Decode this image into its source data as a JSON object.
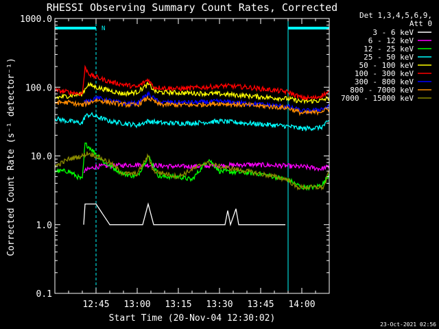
{
  "chart_data": {
    "type": "line",
    "title": "RHESSI Observing Summary Count Rates, Corrected",
    "xlabel": "Start Time (20-Nov-04 12:30:02)",
    "ylabel": "Corrected Count Rate (s⁻¹ detector⁻¹)",
    "yscale": "log",
    "ylim": [
      0.1,
      1000
    ],
    "xlim_minutes": [
      0,
      100
    ],
    "x_ticks": [
      {
        "m": 15,
        "label": "12:45"
      },
      {
        "m": 30,
        "label": "13:00"
      },
      {
        "m": 45,
        "label": "13:15"
      },
      {
        "m": 60,
        "label": "13:30"
      },
      {
        "m": 75,
        "label": "13:45"
      },
      {
        "m": 90,
        "label": "14:00"
      }
    ],
    "y_ticks": [
      {
        "v": 1000,
        "label": "1000.0"
      },
      {
        "v": 100,
        "label": "100.0"
      },
      {
        "v": 10,
        "label": "10.0"
      },
      {
        "v": 1,
        "label": "1.0"
      },
      {
        "v": 0.1,
        "label": "0.1"
      }
    ],
    "legend_header": [
      "Det 1,3,4,5,6,9,",
      "Att 0"
    ],
    "night_intervals": [
      [
        0,
        15
      ],
      [
        85,
        100
      ]
    ],
    "night_label": "N",
    "series": [
      {
        "name": "3 - 6 keV",
        "color": "#ffffff",
        "points": [
          [
            10.5,
            1
          ],
          [
            11,
            2
          ],
          [
            15,
            2
          ],
          [
            20,
            1
          ],
          [
            32,
            1
          ],
          [
            34,
            2
          ],
          [
            36,
            1
          ],
          [
            45,
            1
          ],
          [
            50,
            1
          ],
          [
            62,
            1
          ],
          [
            63,
            1.6
          ],
          [
            64,
            1
          ],
          [
            66,
            1.7
          ],
          [
            67,
            1
          ],
          [
            84,
            1
          ]
        ]
      },
      {
        "name": "6 - 12 keV",
        "color": "#ff00ff",
        "points": [
          [
            10.5,
            6
          ],
          [
            15,
            7
          ],
          [
            30,
            7.5
          ],
          [
            45,
            7
          ],
          [
            60,
            7.2
          ],
          [
            70,
            7.5
          ],
          [
            84,
            7.2
          ],
          [
            87,
            7
          ],
          [
            90,
            7
          ],
          [
            97,
            6.5
          ],
          [
            100,
            7
          ]
        ]
      },
      {
        "name": "12 - 25 keV",
        "color": "#00ff00",
        "points": [
          [
            0,
            6
          ],
          [
            5,
            6
          ],
          [
            10,
            4.5
          ],
          [
            11,
            15
          ],
          [
            13,
            13
          ],
          [
            18,
            8
          ],
          [
            25,
            5.5
          ],
          [
            30,
            5
          ],
          [
            34,
            10
          ],
          [
            38,
            5
          ],
          [
            45,
            5
          ],
          [
            50,
            4.5
          ],
          [
            56,
            9
          ],
          [
            60,
            6
          ],
          [
            75,
            5.5
          ],
          [
            85,
            4.5
          ],
          [
            90,
            3.5
          ],
          [
            95,
            3.5
          ],
          [
            98,
            4
          ],
          [
            100,
            5.5
          ]
        ]
      },
      {
        "name": "25 - 50 keV",
        "color": "#00ffff",
        "points": [
          [
            0,
            35
          ],
          [
            5,
            32
          ],
          [
            10,
            30
          ],
          [
            11,
            38
          ],
          [
            13,
            40
          ],
          [
            20,
            32
          ],
          [
            30,
            28
          ],
          [
            34,
            32
          ],
          [
            40,
            30
          ],
          [
            50,
            30
          ],
          [
            60,
            32
          ],
          [
            70,
            30
          ],
          [
            80,
            28
          ],
          [
            85,
            27
          ],
          [
            90,
            25
          ],
          [
            97,
            26
          ],
          [
            100,
            32
          ]
        ]
      },
      {
        "name": "50 - 100 keV",
        "color": "#ffff00",
        "points": [
          [
            0,
            70
          ],
          [
            5,
            75
          ],
          [
            10,
            80
          ],
          [
            12,
            110
          ],
          [
            15,
            100
          ],
          [
            25,
            80
          ],
          [
            30,
            85
          ],
          [
            34,
            110
          ],
          [
            37,
            85
          ],
          [
            50,
            82
          ],
          [
            60,
            80
          ],
          [
            70,
            75
          ],
          [
            80,
            70
          ],
          [
            85,
            68
          ],
          [
            90,
            62
          ],
          [
            97,
            64
          ],
          [
            100,
            70
          ]
        ]
      },
      {
        "name": "100 - 300 keV",
        "color": "#ff0000",
        "points": [
          [
            0,
            90
          ],
          [
            5,
            85
          ],
          [
            10,
            80
          ],
          [
            11,
            190
          ],
          [
            13,
            150
          ],
          [
            20,
            120
          ],
          [
            30,
            100
          ],
          [
            34,
            130
          ],
          [
            36,
            100
          ],
          [
            45,
            95
          ],
          [
            55,
            100
          ],
          [
            62,
            105
          ],
          [
            70,
            100
          ],
          [
            80,
            90
          ],
          [
            85,
            85
          ],
          [
            90,
            70
          ],
          [
            95,
            70
          ],
          [
            100,
            85
          ]
        ]
      },
      {
        "name": "300 - 800 keV",
        "color": "#0000ff",
        "points": [
          [
            10.5,
            60
          ],
          [
            15,
            70
          ],
          [
            25,
            58
          ],
          [
            30,
            58
          ],
          [
            34,
            80
          ],
          [
            38,
            60
          ],
          [
            50,
            60
          ],
          [
            60,
            62
          ],
          [
            70,
            58
          ],
          [
            85,
            52
          ],
          [
            90,
            45
          ],
          [
            95,
            46
          ],
          [
            100,
            52
          ]
        ]
      },
      {
        "name": "800 - 7000 keV",
        "color": "#ff8c00",
        "points": [
          [
            0,
            60
          ],
          [
            5,
            60
          ],
          [
            10,
            55
          ],
          [
            15,
            65
          ],
          [
            25,
            56
          ],
          [
            30,
            55
          ],
          [
            34,
            70
          ],
          [
            38,
            56
          ],
          [
            50,
            55
          ],
          [
            60,
            58
          ],
          [
            70,
            55
          ],
          [
            85,
            50
          ],
          [
            90,
            42
          ],
          [
            95,
            43
          ],
          [
            100,
            48
          ]
        ]
      },
      {
        "name": "7000 - 15000 keV",
        "color": "#8b8b00",
        "points": [
          [
            0,
            7
          ],
          [
            5,
            9
          ],
          [
            10,
            10
          ],
          [
            12,
            11
          ],
          [
            15,
            10
          ],
          [
            20,
            8
          ],
          [
            25,
            5.5
          ],
          [
            30,
            5.5
          ],
          [
            34,
            10
          ],
          [
            36,
            6
          ],
          [
            45,
            5
          ],
          [
            55,
            8
          ],
          [
            60,
            7
          ],
          [
            70,
            6
          ],
          [
            80,
            5
          ],
          [
            85,
            4.5
          ],
          [
            88,
            3.5
          ],
          [
            95,
            3.5
          ],
          [
            98,
            3.5
          ],
          [
            100,
            6
          ]
        ]
      }
    ]
  },
  "footer": {
    "timestamp": "23-Oct-2021 02:56"
  }
}
